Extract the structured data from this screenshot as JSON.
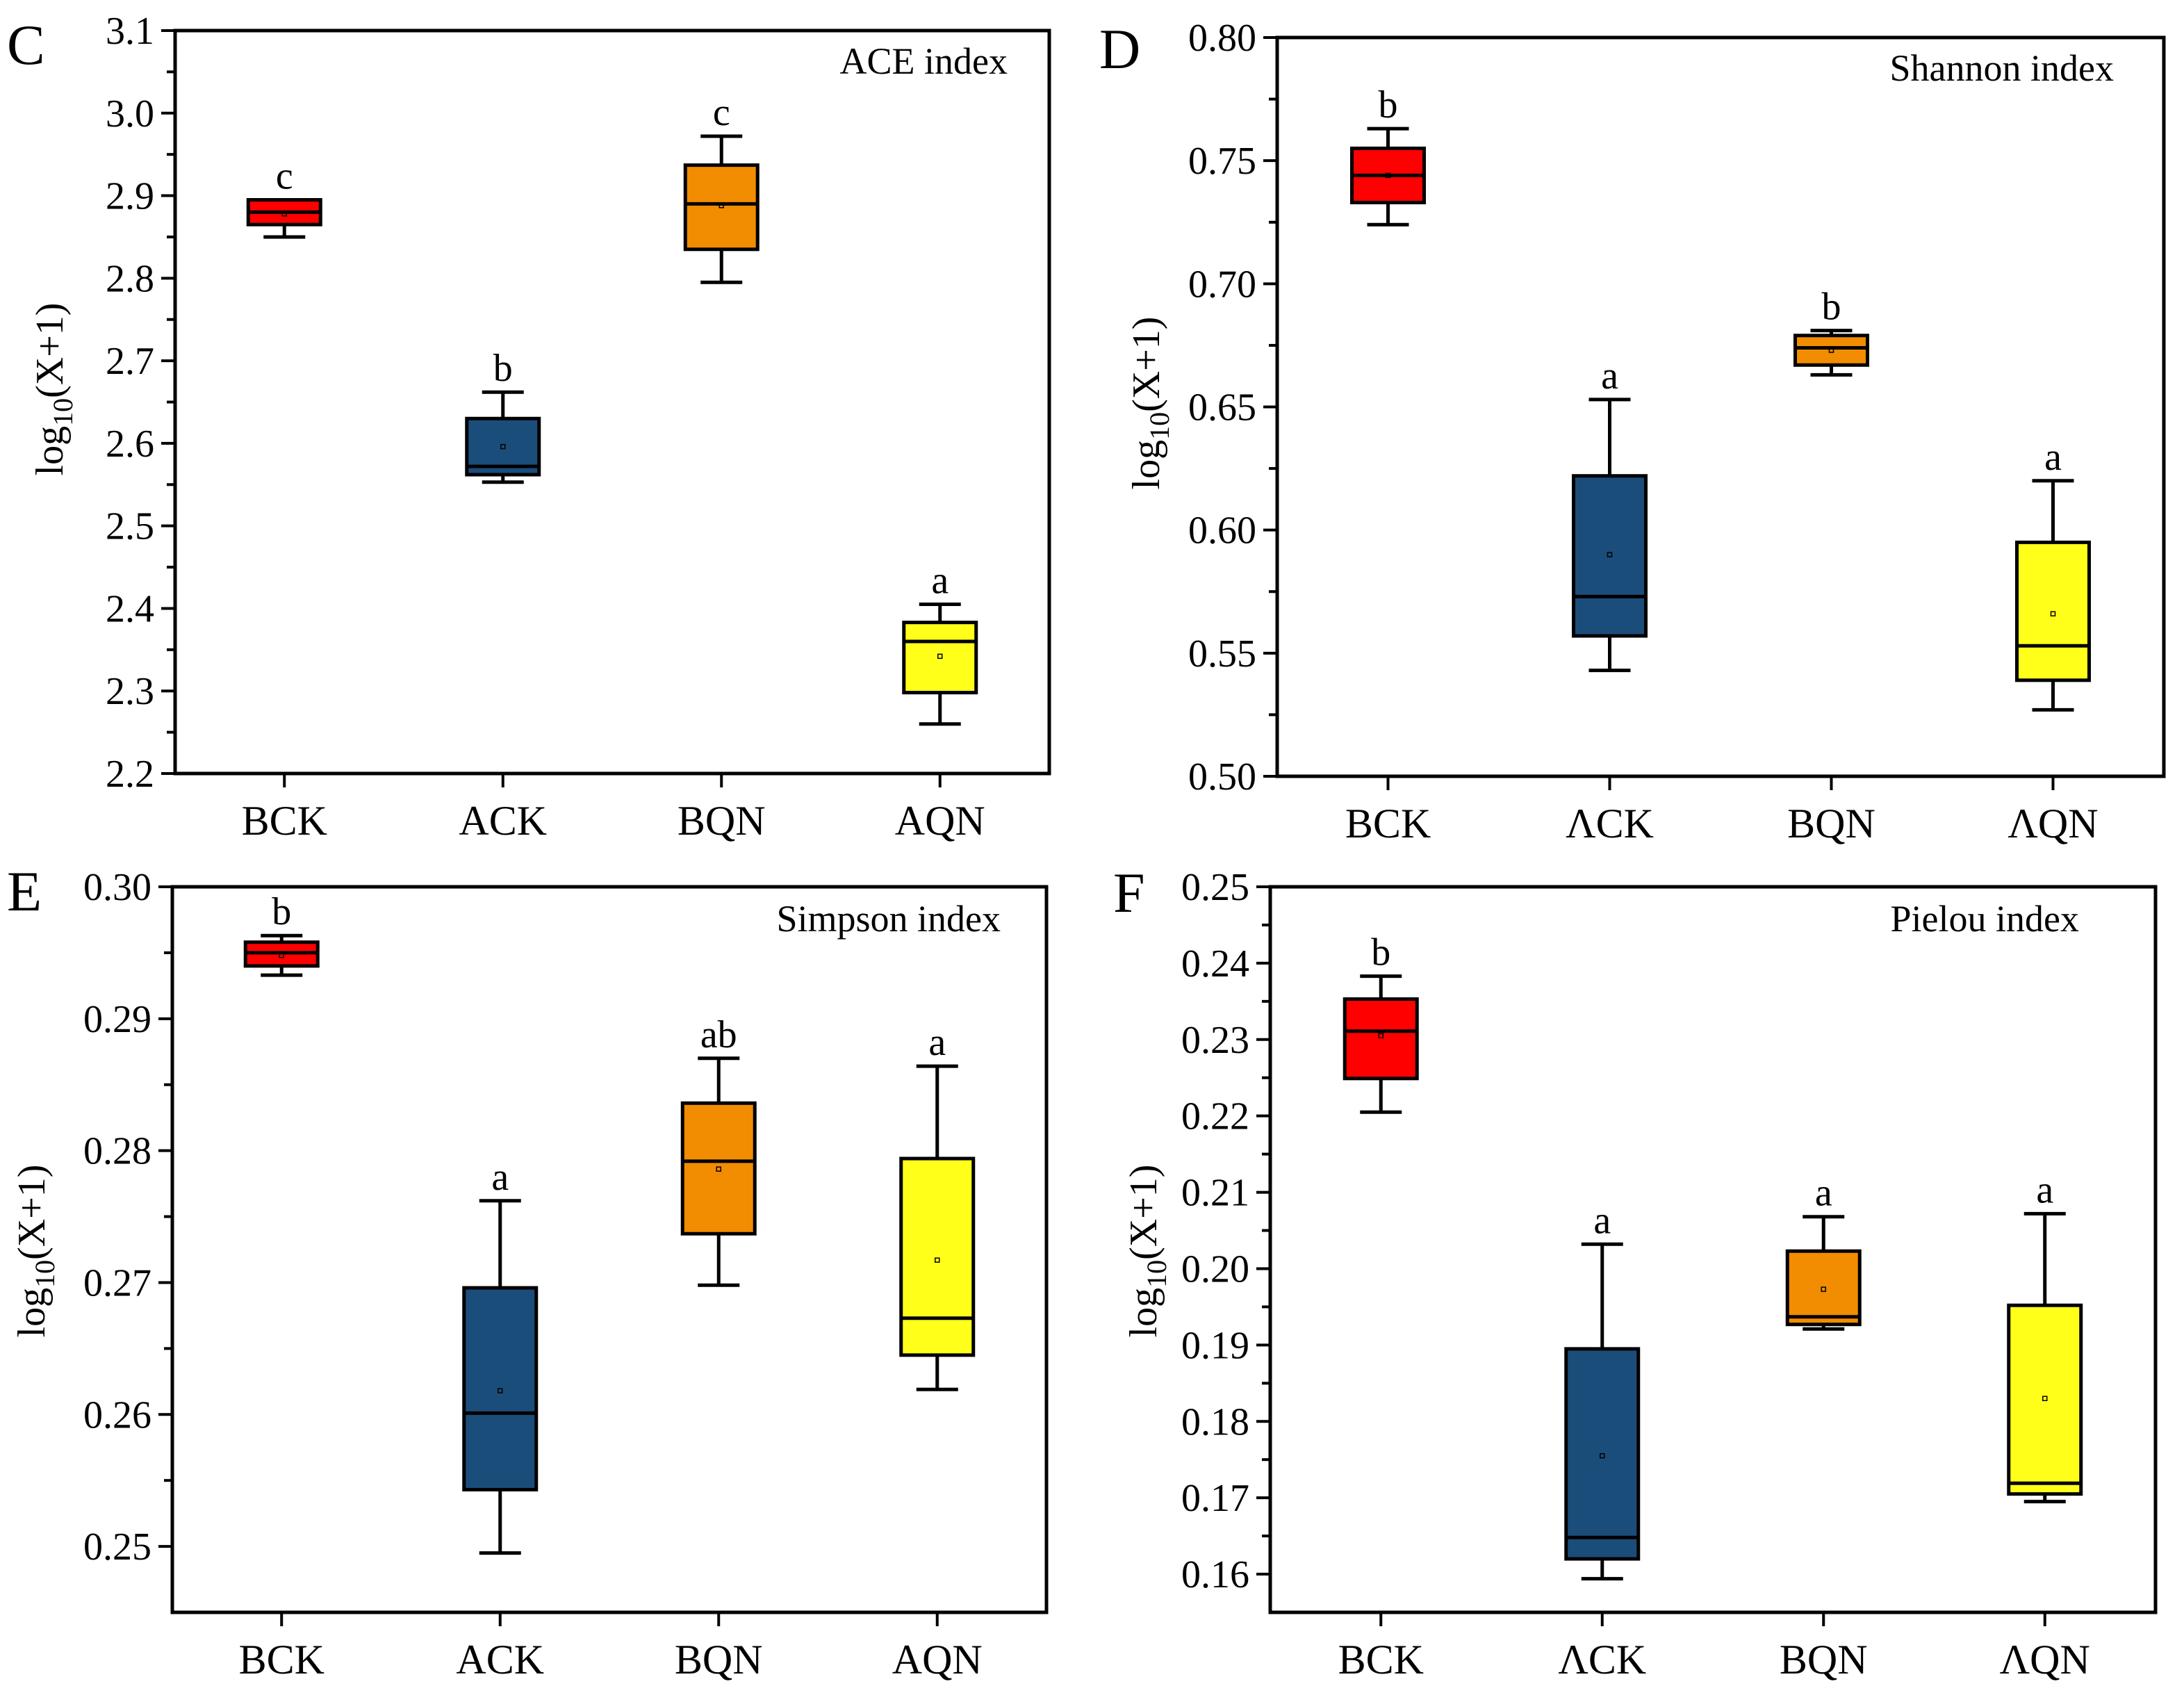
{
  "figure": {
    "y_axis_label_main": "log",
    "y_axis_label_sub": "10",
    "y_axis_label_tail": "(X+1)"
  },
  "colors": {
    "BCK": "#ff0000",
    "ACK": "#1b4d7a",
    "BQN": "#f28c00",
    "AQN": "#ffff1a",
    "axis": "#000000"
  },
  "chart_data": [
    {
      "type": "box",
      "panel": "C",
      "title": "ACE index",
      "ylabel": "log10(X+1)",
      "ylim": [
        2.2,
        3.1
      ],
      "yticks": [
        "2.2",
        "2.3",
        "2.4",
        "2.5",
        "2.6",
        "2.7",
        "2.8",
        "2.9",
        "3.0",
        "3.1"
      ],
      "categories": [
        "BCK",
        "ACK",
        "BQN",
        "AQN"
      ],
      "boxes": [
        {
          "name": "BCK",
          "min": 2.85,
          "q1": 2.865,
          "median": 2.88,
          "q3": 2.895,
          "max": 2.895,
          "mean": 2.878,
          "letter": "c"
        },
        {
          "name": "ACK",
          "min": 2.553,
          "q1": 2.562,
          "median": 2.572,
          "q3": 2.63,
          "max": 2.662,
          "mean": 2.596,
          "letter": "b"
        },
        {
          "name": "BQN",
          "min": 2.795,
          "q1": 2.835,
          "median": 2.89,
          "q3": 2.937,
          "max": 2.972,
          "mean": 2.888,
          "letter": "c"
        },
        {
          "name": "AQN",
          "min": 2.26,
          "q1": 2.298,
          "median": 2.36,
          "q3": 2.383,
          "max": 2.405,
          "mean": 2.342,
          "letter": "a"
        }
      ]
    },
    {
      "type": "box",
      "panel": "D",
      "title": "Shannon index",
      "ylabel": "log10(X+1)",
      "ylim": [
        0.5,
        0.8
      ],
      "yticks": [
        "0.50",
        "0.55",
        "0.60",
        "0.65",
        "0.70",
        "0.75",
        "0.80"
      ],
      "categories": [
        "BCK",
        "ΛCK",
        "BQN",
        "ΛQN"
      ],
      "boxes": [
        {
          "name": "BCK",
          "min": 0.724,
          "q1": 0.733,
          "median": 0.744,
          "q3": 0.755,
          "max": 0.763,
          "mean": 0.744,
          "letter": "b"
        },
        {
          "name": "ΛCK",
          "min": 0.543,
          "q1": 0.557,
          "median": 0.573,
          "q3": 0.622,
          "max": 0.653,
          "mean": 0.59,
          "letter": "a"
        },
        {
          "name": "BQN",
          "min": 0.663,
          "q1": 0.667,
          "median": 0.674,
          "q3": 0.679,
          "max": 0.681,
          "mean": 0.673,
          "letter": "b"
        },
        {
          "name": "ΛQN",
          "min": 0.527,
          "q1": 0.539,
          "median": 0.553,
          "q3": 0.595,
          "max": 0.62,
          "mean": 0.566,
          "letter": "a"
        }
      ]
    },
    {
      "type": "box",
      "panel": "E",
      "title": "Simpson index",
      "ylabel": "log10(X+1)",
      "ylim": [
        0.245,
        0.3
      ],
      "yticks": [
        "0.25",
        "0.26",
        "0.27",
        "0.28",
        "0.29",
        "0.30"
      ],
      "categories": [
        "BCK",
        "ACK",
        "BQN",
        "AQN"
      ],
      "boxes": [
        {
          "name": "BCK",
          "min": 0.2933,
          "q1": 0.294,
          "median": 0.295,
          "q3": 0.2958,
          "max": 0.2963,
          "mean": 0.2948,
          "letter": "b"
        },
        {
          "name": "ACK",
          "min": 0.2495,
          "q1": 0.2543,
          "median": 0.2601,
          "q3": 0.2696,
          "max": 0.2762,
          "mean": 0.2618,
          "letter": "a"
        },
        {
          "name": "BQN",
          "min": 0.2698,
          "q1": 0.2737,
          "median": 0.2792,
          "q3": 0.2836,
          "max": 0.287,
          "mean": 0.2786,
          "letter": "ab"
        },
        {
          "name": "AQN",
          "min": 0.2619,
          "q1": 0.2645,
          "median": 0.2673,
          "q3": 0.2794,
          "max": 0.2864,
          "mean": 0.2717,
          "letter": "a"
        }
      ]
    },
    {
      "type": "box",
      "panel": "F",
      "title": "Pielou index",
      "ylabel": "log10(X+1)",
      "ylim": [
        0.155,
        0.25
      ],
      "yticks": [
        "0.16",
        "0.17",
        "0.18",
        "0.19",
        "0.20",
        "0.21",
        "0.22",
        "0.23",
        "0.24",
        "0.25"
      ],
      "categories": [
        "BCK",
        "ΛCK",
        "BQN",
        "ΛQN"
      ],
      "boxes": [
        {
          "name": "BCK",
          "min": 0.2205,
          "q1": 0.2249,
          "median": 0.2311,
          "q3": 0.2353,
          "max": 0.2383,
          "mean": 0.2305,
          "letter": "b"
        },
        {
          "name": "ΛCK",
          "min": 0.1594,
          "q1": 0.162,
          "median": 0.1648,
          "q3": 0.1895,
          "max": 0.2032,
          "mean": 0.1755,
          "letter": "a"
        },
        {
          "name": "BQN",
          "min": 0.1921,
          "q1": 0.1927,
          "median": 0.1937,
          "q3": 0.2023,
          "max": 0.2068,
          "mean": 0.1973,
          "letter": "a"
        },
        {
          "name": "ΛQN",
          "min": 0.1695,
          "q1": 0.1705,
          "median": 0.1719,
          "q3": 0.1952,
          "max": 0.2072,
          "mean": 0.183,
          "letter": "a"
        }
      ]
    }
  ]
}
